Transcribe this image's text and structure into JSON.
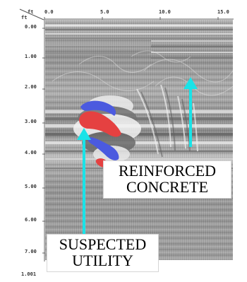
{
  "image": {
    "title": "",
    "colors": {
      "background": "#ffffff",
      "radargram_base": "#8a8a8a",
      "hyperbola_positive": "#e01818",
      "hyperbola_negative": "#2436d8",
      "arrow": "#19e3e8",
      "label_text": "#000000",
      "label_box": "#ffffff"
    }
  },
  "axes": {
    "x_caption": "ft",
    "y_caption": "ft",
    "x_ticks": [
      "0.0",
      "5.0",
      "10.0",
      "15.0"
    ],
    "y_ticks": [
      "0.00",
      "1.00",
      "2.00",
      "3.00",
      "4.00",
      "5.00",
      "6.00",
      "7.00"
    ],
    "y_bottom_label": "1.001"
  },
  "annotations": {
    "reinforced_concrete": {
      "line_1": "REINFORCED",
      "line_2": "CONCRETE"
    },
    "suspected_utility": {
      "line_1": "SUSPECTED",
      "line_2": "UTILITY"
    }
  }
}
